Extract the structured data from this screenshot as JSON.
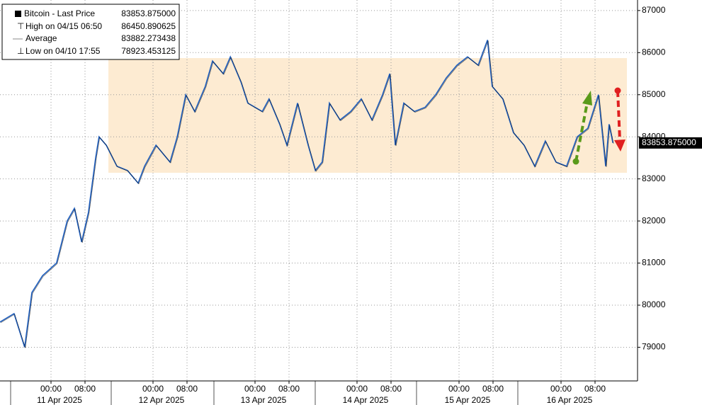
{
  "chart_data": {
    "type": "line",
    "legend": {
      "series_name": "Bitcoin - Last Price",
      "last_value": "83853.875000",
      "high_label": "High on 04/15 06:50",
      "high_value": "86450.890625",
      "average_label": "Average",
      "average_value": "83882.273438",
      "low_label": "Low on 04/10 17:55",
      "low_value": "78923.453125"
    },
    "x": [
      -12,
      -8.7,
      -6.2,
      -4.5,
      -2,
      1.3,
      3.8,
      5.5,
      7.2,
      8.8,
      10.5,
      11.3,
      13,
      15.5,
      18,
      20.5,
      22,
      24.7,
      28,
      29.7,
      31.7,
      33.8,
      36.3,
      38,
      40.5,
      42.2,
      44.7,
      46.3,
      49.7,
      51.3,
      53.8,
      55.5,
      58,
      60.5,
      62.2,
      63.8,
      65.5,
      68,
      70.5,
      73,
      75.5,
      78,
      79.7,
      81,
      83,
      85.5,
      88,
      90.5,
      93,
      95.5,
      98,
      100.5,
      102.7,
      103.8,
      106.3,
      108.8,
      111.3,
      113.8,
      116.3,
      118.8,
      121.3,
      123.8,
      126.3,
      128.8,
      130.5,
      131.3,
      132.2
    ],
    "series": [
      {
        "name": "Bitcoin - Last Price",
        "color": "#1f5fbf",
        "values": [
          79600,
          79800,
          79000,
          80300,
          80700,
          81000,
          82000,
          82300,
          81500,
          82200,
          83500,
          84000,
          83800,
          83300,
          83200,
          82900,
          83300,
          83800,
          83400,
          84000,
          85000,
          84600,
          85200,
          85800,
          85500,
          85900,
          85300,
          84800,
          84600,
          84900,
          84300,
          83800,
          84800,
          83800,
          83200,
          83400,
          84800,
          84400,
          84600,
          84900,
          84400,
          85000,
          85500,
          83800,
          84800,
          84600,
          84700,
          85000,
          85400,
          85700,
          85900,
          85700,
          86300,
          85200,
          84900,
          84100,
          83800,
          83300,
          83900,
          83400,
          83300,
          84000,
          84200,
          85000,
          83300,
          84300,
          83853.875
        ]
      }
    ],
    "xlim": [
      -12,
      138
    ],
    "xticks": [
      {
        "value": 0,
        "label": "00:00"
      },
      {
        "value": 8,
        "label": "08:00"
      },
      {
        "value": 24,
        "label": "00:00"
      },
      {
        "value": 32,
        "label": "08:00"
      },
      {
        "value": 48,
        "label": "00:00"
      },
      {
        "value": 56,
        "label": "08:00"
      },
      {
        "value": 72,
        "label": "00:00"
      },
      {
        "value": 80,
        "label": "08:00"
      },
      {
        "value": 96,
        "label": "00:00"
      },
      {
        "value": 104,
        "label": "08:00"
      },
      {
        "value": 120,
        "label": "00:00"
      },
      {
        "value": 128,
        "label": "08:00"
      }
    ],
    "date_labels": [
      {
        "value": 2,
        "label": "11 Apr 2025"
      },
      {
        "value": 26,
        "label": "12 Apr 2025"
      },
      {
        "value": 50,
        "label": "13 Apr 2025"
      },
      {
        "value": 74,
        "label": "14 Apr 2025"
      },
      {
        "value": 98,
        "label": "15 Apr 2025"
      },
      {
        "value": 122,
        "label": "16 Apr 2025"
      }
    ],
    "ylim": [
      78200,
      87250
    ],
    "yticks": [
      79000,
      80000,
      81000,
      82000,
      83000,
      84000,
      85000,
      86000,
      87000
    ],
    "grid": true
  }
}
